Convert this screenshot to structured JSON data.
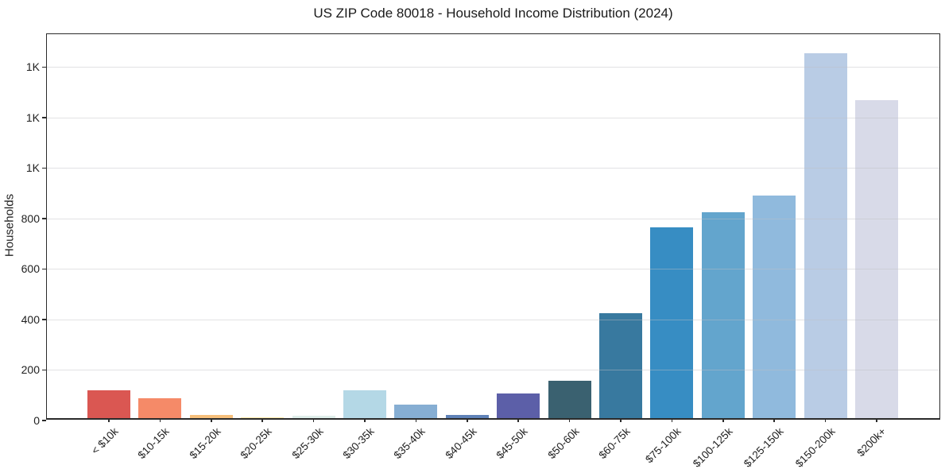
{
  "title": "US ZIP Code 80018 - Household Income Distribution (2024)",
  "y_axis_label": "Households",
  "chart_data": {
    "type": "bar",
    "title": "US ZIP Code 80018 - Household Income Distribution (2024)",
    "xlabel": "",
    "ylabel": "Households",
    "ylim": [
      0,
      1530
    ],
    "grid": true,
    "legend": "none",
    "categories": [
      "< $10k",
      "$10-15k",
      "$15-20k",
      "$20-25k",
      "$25-30k",
      "$30-35k",
      "$35-40k",
      "$40-45k",
      "$45-50k",
      "$50-60k",
      "$60-75k",
      "$75-100k",
      "$100-125k",
      "$125-150k",
      "$150-200k",
      "$200k+"
    ],
    "values": [
      110,
      80,
      13,
      2,
      10,
      110,
      54,
      13,
      99,
      147,
      416,
      756,
      816,
      880,
      1446,
      1260
    ],
    "bar_colors": [
      "#da5752",
      "#f58a68",
      "#f6bf7b",
      "#fce8a9",
      "#dfeeea",
      "#b4d8e6",
      "#86aed3",
      "#5f82b8",
      "#5c5fa8",
      "#3a6170",
      "#38799f",
      "#378dc3",
      "#63a5cd",
      "#90badd",
      "#b9cce5",
      "#d8dae8"
    ],
    "ytick_values": [
      0,
      200,
      400,
      600,
      800,
      1000,
      1200,
      1400
    ],
    "ytick_labels": [
      "0",
      "200",
      "400",
      "600",
      "800",
      "1K",
      "1K",
      "1K"
    ],
    "grid_color": "#e8e8e8",
    "spine_color": "#2b2b2b",
    "text_color": "#1f1f1f"
  }
}
